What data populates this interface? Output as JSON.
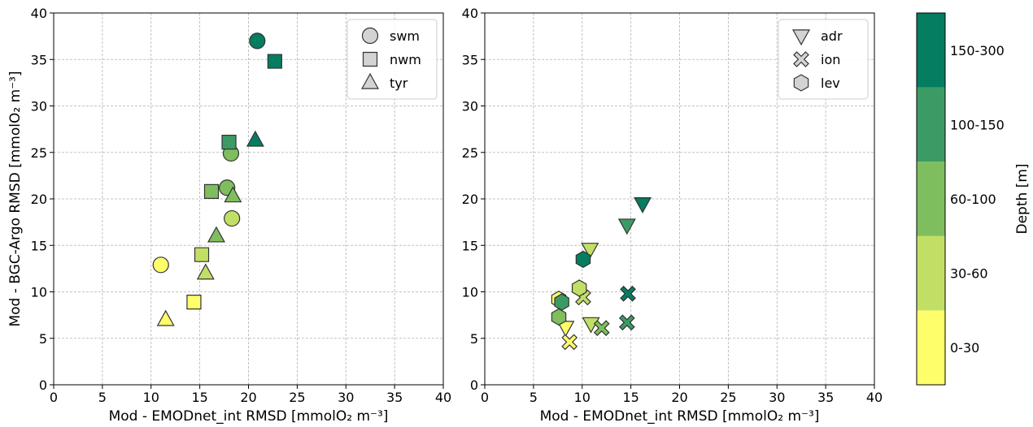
{
  "chart_data": [
    {
      "type": "scatter",
      "xlabel": "Mod - EMODnet_int RMSD [mmolO₂ m⁻³]",
      "ylabel": "Mod - BGC-Argo RMSD [mmolO₂ m⁻³]",
      "xlim": [
        0,
        40
      ],
      "ylim": [
        0,
        40
      ],
      "xticks": [
        "0",
        "5",
        "10",
        "15",
        "20",
        "25",
        "30",
        "35",
        "40"
      ],
      "yticks": [
        "0",
        "5",
        "10",
        "15",
        "20",
        "25",
        "30",
        "35",
        "40"
      ],
      "grid": true,
      "legend_position": "top-right",
      "series": [
        {
          "name": "swm",
          "marker": "circle",
          "points": [
            {
              "x": 11.0,
              "y": 12.9,
              "depth": "0-30"
            },
            {
              "x": 18.3,
              "y": 17.9,
              "depth": "30-60"
            },
            {
              "x": 17.8,
              "y": 21.2,
              "depth": "60-100"
            },
            {
              "x": 18.2,
              "y": 24.9,
              "depth": "60-100"
            },
            {
              "x": 20.9,
              "y": 37.0,
              "depth": "150-300"
            }
          ]
        },
        {
          "name": "nwm",
          "marker": "square",
          "points": [
            {
              "x": 14.4,
              "y": 8.9,
              "depth": "0-30"
            },
            {
              "x": 15.2,
              "y": 14.0,
              "depth": "30-60"
            },
            {
              "x": 16.2,
              "y": 20.8,
              "depth": "60-100"
            },
            {
              "x": 18.0,
              "y": 26.1,
              "depth": "100-150"
            },
            {
              "x": 22.7,
              "y": 34.8,
              "depth": "150-300"
            }
          ]
        },
        {
          "name": "tyr",
          "marker": "triangle-up",
          "points": [
            {
              "x": 11.5,
              "y": 7.0,
              "depth": "0-30"
            },
            {
              "x": 15.6,
              "y": 12.0,
              "depth": "30-60"
            },
            {
              "x": 16.7,
              "y": 16.0,
              "depth": "60-100"
            },
            {
              "x": 18.4,
              "y": 20.3,
              "depth": "60-100"
            },
            {
              "x": 20.7,
              "y": 26.3,
              "depth": "150-300"
            }
          ]
        }
      ]
    },
    {
      "type": "scatter",
      "xlabel": "Mod - EMODnet_int RMSD [mmolO₂ m⁻³]",
      "ylabel": "",
      "xlim": [
        0,
        40
      ],
      "ylim": [
        0,
        40
      ],
      "xticks": [
        "0",
        "5",
        "10",
        "15",
        "20",
        "25",
        "30",
        "35",
        "40"
      ],
      "yticks": [
        "0",
        "5",
        "10",
        "15",
        "20",
        "25",
        "30",
        "35",
        "40"
      ],
      "grid": true,
      "legend_position": "top-right",
      "series": [
        {
          "name": "adr",
          "marker": "triangle-down",
          "points": [
            {
              "x": 8.3,
              "y": 6.2,
              "depth": "0-30"
            },
            {
              "x": 10.9,
              "y": 6.6,
              "depth": "30-60"
            },
            {
              "x": 10.8,
              "y": 14.6,
              "depth": "30-60"
            },
            {
              "x": 14.6,
              "y": 17.2,
              "depth": "100-150"
            },
            {
              "x": 16.2,
              "y": 19.5,
              "depth": "150-300"
            }
          ]
        },
        {
          "name": "ion",
          "marker": "x",
          "points": [
            {
              "x": 8.7,
              "y": 4.6,
              "depth": "0-30"
            },
            {
              "x": 10.1,
              "y": 9.4,
              "depth": "30-60"
            },
            {
              "x": 12.0,
              "y": 6.1,
              "depth": "60-100"
            },
            {
              "x": 14.6,
              "y": 6.7,
              "depth": "100-150"
            },
            {
              "x": 14.7,
              "y": 9.8,
              "depth": "150-300"
            }
          ]
        },
        {
          "name": "lev",
          "marker": "hexagon",
          "points": [
            {
              "x": 7.6,
              "y": 9.2,
              "depth": "0-30"
            },
            {
              "x": 9.7,
              "y": 10.4,
              "depth": "30-60"
            },
            {
              "x": 7.6,
              "y": 7.3,
              "depth": "60-100"
            },
            {
              "x": 7.9,
              "y": 8.9,
              "depth": "100-150"
            },
            {
              "x": 10.1,
              "y": 13.5,
              "depth": "150-300"
            }
          ]
        }
      ]
    }
  ],
  "colorbar": {
    "label": "Depth [m]",
    "categories": [
      "0-30",
      "30-60",
      "60-100",
      "100-150",
      "150-300"
    ],
    "colors": [
      "#fefe6b",
      "#c2df65",
      "#7fbe5e",
      "#3c9b64",
      "#047d60"
    ]
  },
  "legend_marker_fill": "#d3d3d3"
}
